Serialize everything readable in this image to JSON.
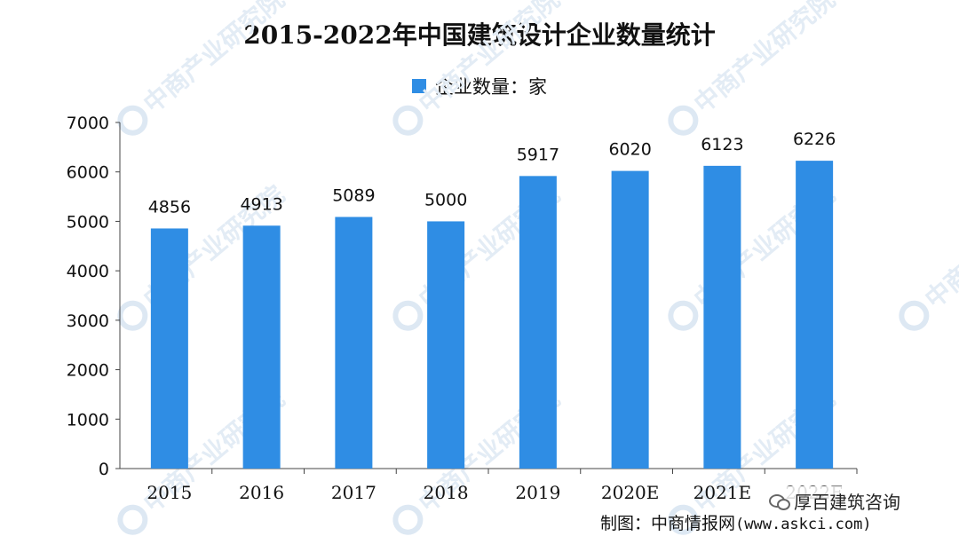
{
  "chart_data": {
    "type": "bar",
    "title": "2015-2022年中国建筑设计企业数量统计",
    "legend": "企业数量：家",
    "categories": [
      "2015",
      "2016",
      "2017",
      "2018",
      "2019",
      "2020E",
      "2021E",
      "2022E"
    ],
    "values": [
      4856,
      4913,
      5089,
      5000,
      5917,
      6020,
      6123,
      6226
    ],
    "ylim": [
      0,
      7000
    ],
    "yticks": [
      "0",
      "1000",
      "2000",
      "3000",
      "4000",
      "5000",
      "6000",
      "7000"
    ],
    "grid": false,
    "legend_position": "top-center",
    "bar_color": "#2f8de4"
  },
  "credit": {
    "label": "制图：中商情报网",
    "site": "(www.askci.com)"
  },
  "overlay": {
    "text": "厚百建筑咨询",
    "icon": "wechat-icon"
  },
  "watermark": {
    "text": "中商产业研究院"
  }
}
